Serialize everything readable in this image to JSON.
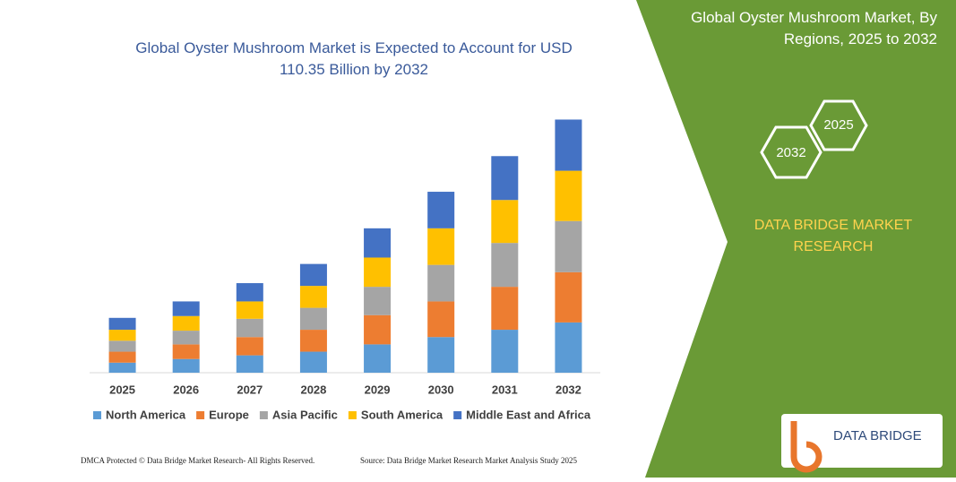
{
  "chart_data": {
    "type": "bar",
    "stacked": true,
    "title": "Global Oyster Mushroom Market is Expected to Account for USD 110.35 Billion by 2032",
    "categories": [
      "2025",
      "2026",
      "2027",
      "2028",
      "2029",
      "2030",
      "2031",
      "2032"
    ],
    "series": [
      {
        "name": "North America",
        "color": "#5b9bd5",
        "values": [
          11,
          15,
          19,
          23,
          31,
          39,
          47,
          55
        ]
      },
      {
        "name": "Europe",
        "color": "#ed7d31",
        "values": [
          12,
          16,
          20,
          24,
          32,
          39,
          47,
          55
        ]
      },
      {
        "name": "Asia Pacific",
        "color": "#a5a5a5",
        "values": [
          12,
          15,
          20,
          24,
          31,
          40,
          48,
          56
        ]
      },
      {
        "name": "South America",
        "color": "#ffc000",
        "values": [
          12,
          16,
          19,
          24,
          32,
          40,
          47,
          55
        ]
      },
      {
        "name": "Middle East and Africa",
        "color": "#4472c4",
        "values": [
          13,
          16,
          20,
          24,
          32,
          40,
          48,
          56
        ]
      }
    ],
    "ylim": [
      0,
      300
    ]
  },
  "panel": {
    "title": "Global Oyster Mushroom Market, By Regions, 2025 to 2032",
    "hex_right": "2025",
    "hex_left": "2032",
    "brand": "DATA BRIDGE MARKET RESEARCH",
    "logo": "DATA BRIDGE"
  },
  "footer": {
    "left": "DMCA Protected © Data Bridge Market Research- All Rights Reserved.",
    "right": "Source: Data Bridge Market Research Market Analysis Study 2025"
  }
}
